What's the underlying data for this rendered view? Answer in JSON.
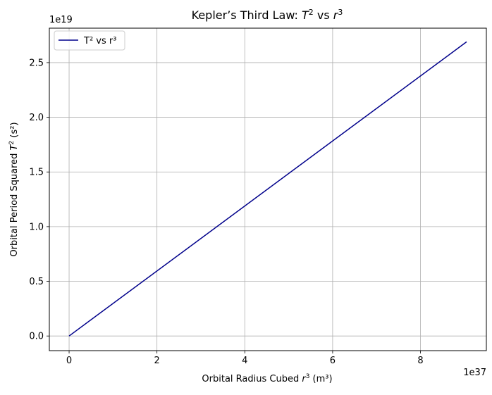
{
  "chart_data": {
    "type": "line",
    "title_main": "Kepler’s Third Law: ",
    "title_math_1": "T",
    "title_math_1_sup": "2",
    "title_mid": " vs ",
    "title_math_2": "r",
    "title_math_2_sup": "3",
    "xlabel_prefix": "Orbital Radius Cubed ",
    "xlabel_math": "r",
    "xlabel_math_sup": "3",
    "xlabel_suffix": " (m³)",
    "ylabel_prefix": "Orbital Period Squared ",
    "ylabel_math": "T",
    "ylabel_math_sup": "2",
    "ylabel_suffix": " (s²)",
    "x_offset_label": "1e37",
    "y_offset_label": "1e19",
    "xlim": [
      -0.45,
      9.5
    ],
    "ylim": [
      -0.134,
      2.815
    ],
    "x_ticks": [
      0,
      2,
      4,
      6,
      8
    ],
    "x_tick_labels": [
      "0",
      "2",
      "4",
      "6",
      "8"
    ],
    "y_ticks": [
      0.0,
      0.5,
      1.0,
      1.5,
      2.0,
      2.5
    ],
    "y_tick_labels": [
      "0.0",
      "0.5",
      "1.0",
      "1.5",
      "2.0",
      "2.5"
    ],
    "grid": true,
    "legend_position": "top-left",
    "series": [
      {
        "name": "T² vs r³",
        "color": "#00008b",
        "x": [
          0.0,
          9.05
        ],
        "y": [
          0.0,
          2.69
        ]
      }
    ]
  }
}
